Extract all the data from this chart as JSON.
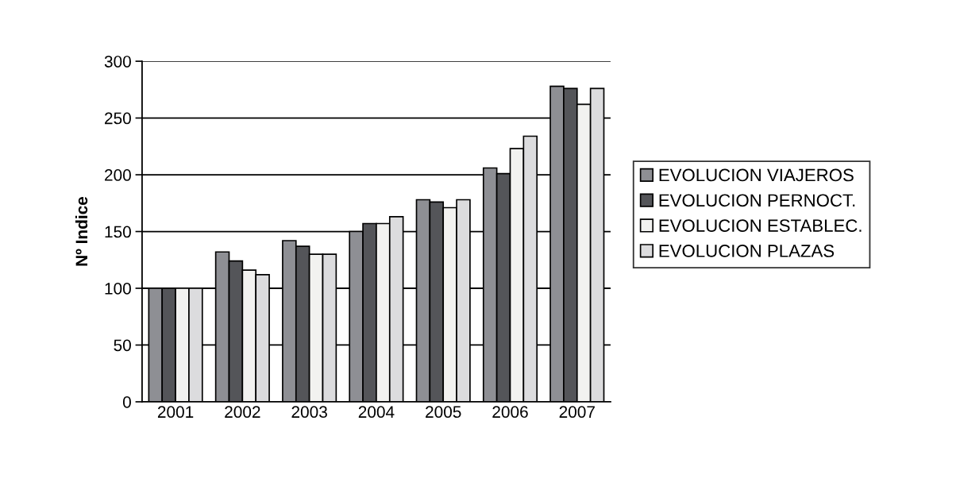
{
  "chart_data": {
    "type": "bar",
    "ylabel": "Nº Indice",
    "categories": [
      "2001",
      "2002",
      "2003",
      "2004",
      "2005",
      "2006",
      "2007"
    ],
    "series": [
      {
        "name": "EVOLUCION VIAJEROS",
        "color": "#8e8f94",
        "values": [
          100,
          132,
          142,
          150,
          178,
          206,
          278
        ]
      },
      {
        "name": "EVOLUCION PERNOCT.",
        "color": "#545559",
        "values": [
          100,
          124,
          137,
          157,
          176,
          201,
          276
        ]
      },
      {
        "name": "EVOLUCION ESTABLEC.",
        "color": "#f2f2f0",
        "values": [
          100,
          116,
          130,
          157,
          171,
          223,
          262
        ]
      },
      {
        "name": "EVOLUCION PLAZAS",
        "color": "#dcdcde",
        "values": [
          100,
          112,
          130,
          163,
          178,
          234,
          276
        ]
      }
    ],
    "ylim": [
      0,
      300
    ],
    "yticks": [
      0,
      50,
      100,
      150,
      200,
      250,
      300
    ],
    "grid": "y",
    "legend": "right"
  }
}
